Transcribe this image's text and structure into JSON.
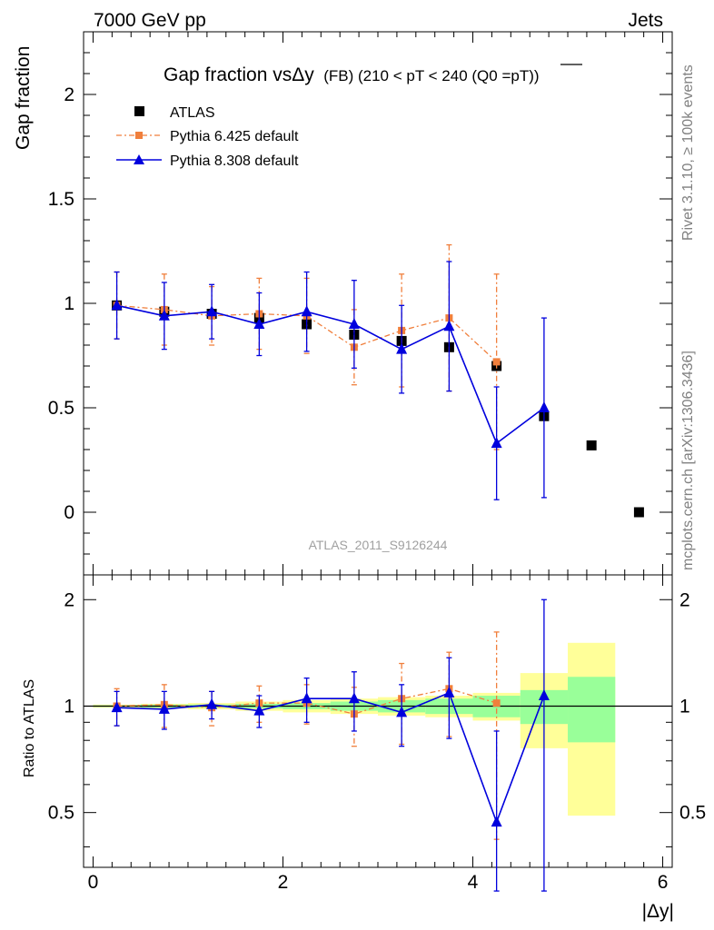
{
  "header": {
    "left": "7000 GeV pp",
    "right": "Jets"
  },
  "side_labels": {
    "rivet": "Rivet 3.1.10, ≥ 100k events",
    "mcplots": "mcplots.cern.ch [arXiv:1306.3436]"
  },
  "watermark": "ATLAS_2011_S9126244",
  "colors": {
    "atlas": "#000000",
    "pythia6": "#f07f3c",
    "pythia8": "#0000dd",
    "band_inner": "#99ff99",
    "band_outer": "#ffff99"
  },
  "chart_data": [
    {
      "type": "scatter",
      "title": "Gap fraction vsΔy",
      "title_suffix": "(FB) (210 < pT < 240 (Q0 =pT))",
      "ylabel": "Gap fraction",
      "xlim": [
        -0.1,
        6.1
      ],
      "ylim": [
        -0.3,
        2.3
      ],
      "yticks": [
        "0",
        "0.5",
        "1",
        "1.5",
        "2"
      ],
      "legend": [
        "ATLAS",
        "Pythia 6.425 default",
        "Pythia 8.308 default"
      ],
      "legend_position": "top-left",
      "x": [
        0.25,
        0.75,
        1.25,
        1.75,
        2.25,
        2.75,
        3.25,
        3.75,
        4.25,
        4.75,
        5.25,
        5.75
      ],
      "series": [
        {
          "name": "ATLAS",
          "values": [
            0.99,
            0.96,
            0.95,
            0.93,
            0.9,
            0.85,
            0.82,
            0.79,
            0.7,
            0.46,
            0.32,
            0.0
          ]
        },
        {
          "name": "Pythia 6.425 default",
          "values": [
            0.99,
            0.97,
            0.94,
            0.95,
            0.94,
            0.79,
            0.87,
            0.93,
            0.72
          ],
          "err": [
            0.16,
            0.17,
            0.14,
            0.17,
            0.18,
            0.18,
            0.27,
            0.35,
            0.42
          ]
        },
        {
          "name": "Pythia 8.308 default",
          "values": [
            0.99,
            0.94,
            0.96,
            0.9,
            0.96,
            0.9,
            0.78,
            0.89,
            0.33,
            0.5
          ],
          "err": [
            0.16,
            0.16,
            0.13,
            0.15,
            0.19,
            0.21,
            0.21,
            0.31,
            0.27,
            0.43
          ]
        }
      ]
    },
    {
      "type": "scatter",
      "ylabel": "Ratio to ATLAS",
      "xlabel": "|Δy|",
      "xlim": [
        -0.1,
        6.1
      ],
      "xticks": [
        "0",
        "2",
        "4",
        "6"
      ],
      "ylim": [
        0.35,
        2.35
      ],
      "yticks": [
        "0.5",
        "1",
        "2"
      ],
      "bands": {
        "edges": [
          0,
          0.5,
          1.0,
          1.5,
          2.0,
          2.5,
          3.0,
          3.5,
          4.0,
          4.5,
          5.0,
          5.5
        ],
        "inner": [
          [
            0.995,
            1.005
          ],
          [
            0.99,
            1.01
          ],
          [
            0.99,
            1.01
          ],
          [
            0.985,
            1.015
          ],
          [
            0.98,
            1.02
          ],
          [
            0.97,
            1.03
          ],
          [
            0.96,
            1.04
          ],
          [
            0.95,
            1.05
          ],
          [
            0.93,
            1.07
          ],
          [
            0.89,
            1.11
          ],
          [
            0.79,
            1.21
          ]
        ],
        "outer": [
          [
            0.99,
            1.01
          ],
          [
            0.985,
            1.015
          ],
          [
            0.98,
            1.02
          ],
          [
            0.97,
            1.03
          ],
          [
            0.96,
            1.04
          ],
          [
            0.95,
            1.05
          ],
          [
            0.94,
            1.06
          ],
          [
            0.93,
            1.07
          ],
          [
            0.91,
            1.09
          ],
          [
            0.76,
            1.24
          ],
          [
            0.49,
            1.51
          ]
        ]
      },
      "series": [
        {
          "name": "Pythia 6.425 default",
          "values": [
            1.0,
            1.01,
            0.99,
            1.02,
            1.02,
            0.95,
            1.05,
            1.12,
            1.02
          ],
          "err": [
            0.12,
            0.14,
            0.11,
            0.12,
            0.13,
            0.18,
            0.27,
            0.3,
            0.6
          ]
        },
        {
          "name": "Pythia 8.308 default",
          "values": [
            0.99,
            0.98,
            1.01,
            0.97,
            1.05,
            1.05,
            0.96,
            1.09,
            0.47,
            1.07
          ],
          "err": [
            0.11,
            0.12,
            0.09,
            0.1,
            0.15,
            0.2,
            0.19,
            0.28,
            0.38,
            0.93
          ]
        }
      ]
    }
  ]
}
